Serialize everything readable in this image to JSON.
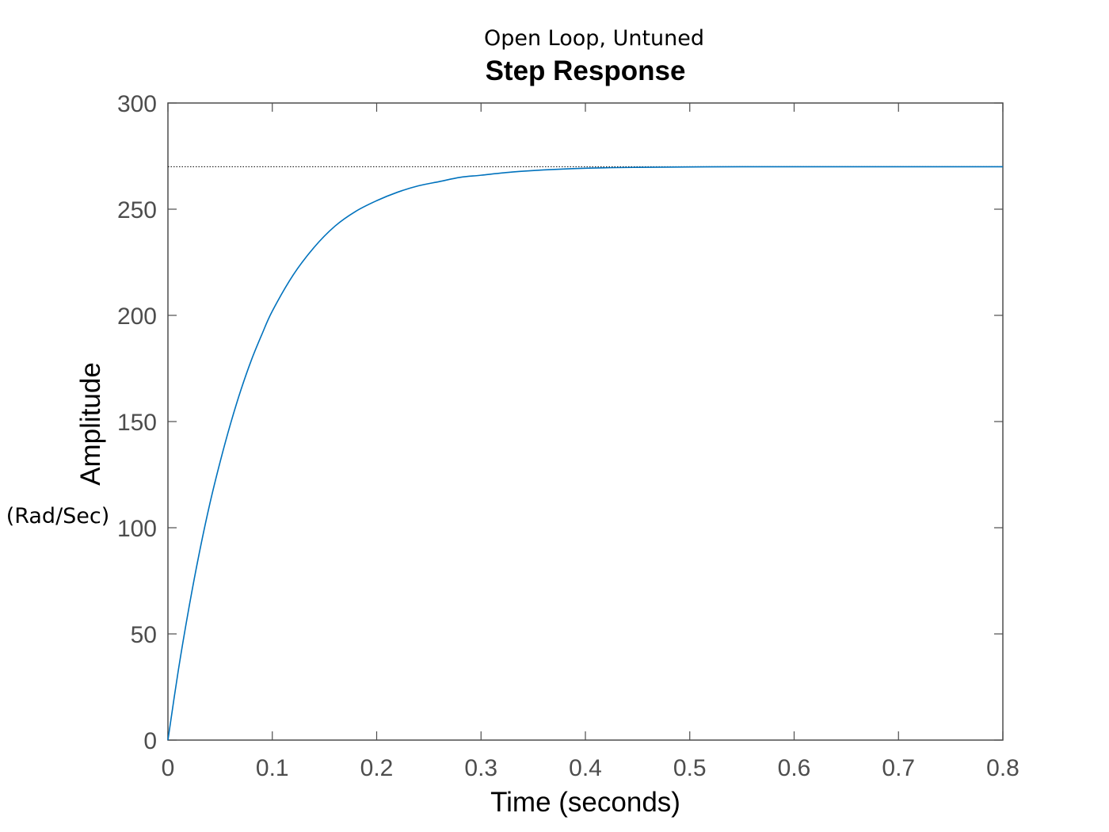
{
  "chart_data": {
    "type": "line",
    "title": "Step Response",
    "annotations": {
      "top": "Open Loop, Untuned",
      "left": "(Rad/Sec)"
    },
    "xlabel": "Time (seconds)",
    "ylabel": "Amplitude",
    "xlim": [
      0,
      0.8
    ],
    "ylim": [
      0,
      300
    ],
    "xticks": [
      0,
      0.1,
      0.2,
      0.3,
      0.4,
      0.5,
      0.6,
      0.7,
      0.8
    ],
    "xtick_labels": [
      "0",
      "0.1",
      "0.2",
      "0.3",
      "0.4",
      "0.5",
      "0.6",
      "0.7",
      "0.8"
    ],
    "yticks": [
      0,
      50,
      100,
      150,
      200,
      250,
      300
    ],
    "ytick_labels": [
      "0",
      "50",
      "100",
      "150",
      "200",
      "250",
      "300"
    ],
    "grid": false,
    "steady_state_value": 270,
    "series": [
      {
        "x": [
          0,
          0.01,
          0.02,
          0.03,
          0.04,
          0.05,
          0.06,
          0.07,
          0.08,
          0.09,
          0.1,
          0.12,
          0.14,
          0.16,
          0.18,
          0.2,
          0.22,
          0.24,
          0.26,
          0.28,
          0.3,
          0.33,
          0.36,
          0.4,
          0.45,
          0.5,
          0.55,
          0.6,
          0.65,
          0.7,
          0.75,
          0.8
        ],
        "y": [
          0,
          33,
          62,
          88,
          111,
          131,
          149,
          165,
          179,
          191,
          202,
          219,
          232,
          242,
          249,
          254,
          258,
          261,
          263,
          265,
          266,
          267.5,
          268.5,
          269.3,
          269.7,
          269.9,
          270,
          270,
          270,
          270,
          270,
          270
        ]
      }
    ],
    "colors": {
      "line": "#0072bd",
      "steady_state_line": "#000000",
      "axes": "#4d4d4d"
    }
  }
}
